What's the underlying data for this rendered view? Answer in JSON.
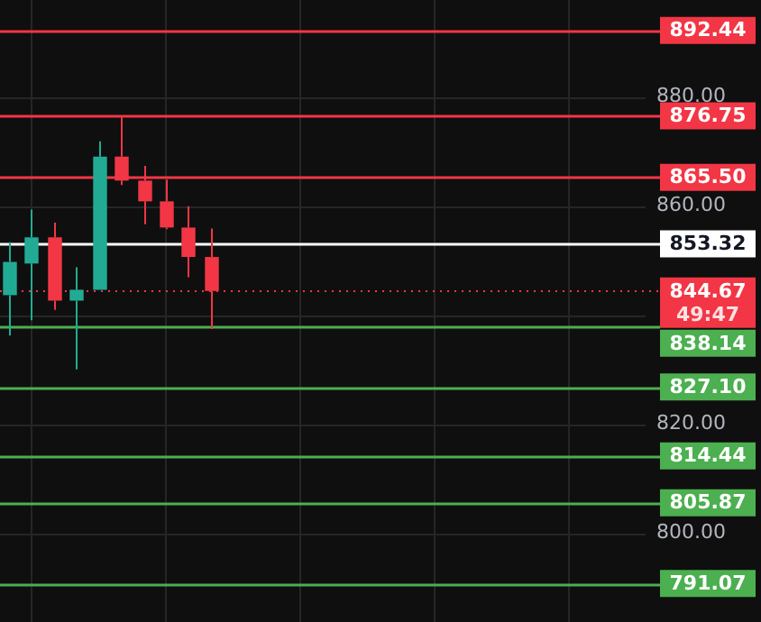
{
  "chart_data": {
    "type": "candlestick",
    "categories": [
      null,
      null,
      null,
      null,
      null,
      null,
      null,
      null,
      null,
      null,
      null,
      null,
      null,
      null,
      null,
      null,
      null,
      null,
      null,
      null,
      null,
      null,
      null,
      null,
      null,
      null,
      null,
      null,
      null
    ],
    "ohlc": [
      [
        843.9,
        853.6,
        836.5,
        850.0
      ],
      [
        849.7,
        859.6,
        839.3,
        854.5
      ],
      [
        854.5,
        857.2,
        841.2,
        842.9
      ],
      [
        842.9,
        849.0,
        830.3,
        844.9
      ],
      [
        844.9,
        872.1,
        844.9,
        869.3
      ],
      [
        869.3,
        876.5,
        864.1,
        864.9
      ],
      [
        864.9,
        867.6,
        856.9,
        861.1
      ],
      [
        861.1,
        865.1,
        856.0,
        856.3
      ],
      [
        856.3,
        860.2,
        847.2,
        850.9
      ],
      [
        850.9,
        856.1,
        837.7,
        844.67
      ],
      null,
      null,
      null,
      null,
      null,
      null,
      null,
      null,
      null,
      null,
      null,
      null,
      null,
      null,
      null,
      null,
      null,
      null,
      null
    ],
    "ylim": [
      784,
      898
    ],
    "yticks": [
      {
        "value": 800,
        "label": "800.00"
      },
      {
        "value": 820,
        "label": "820.00"
      },
      {
        "value": 840,
        "label": null
      },
      {
        "value": 860,
        "label": "860.00"
      },
      {
        "value": 880,
        "label": "880.00"
      }
    ],
    "ref_lines": [
      {
        "axis": "y",
        "value": 892.44,
        "label": "892.44",
        "color": "#f23645"
      },
      {
        "axis": "y",
        "value": 876.75,
        "label": "876.75",
        "color": "#f23645"
      },
      {
        "axis": "y",
        "value": 865.5,
        "label": "865.50",
        "color": "#f23645"
      },
      {
        "axis": "y",
        "value": 853.32,
        "label": "853.32",
        "color": "#ffffff"
      },
      {
        "axis": "y",
        "value": 844.67,
        "label": "844.67",
        "color": "#f23645",
        "line_style": "dotted"
      },
      {
        "axis": "y",
        "value": 838.14,
        "label": "838.14",
        "color": "#4caf50"
      },
      {
        "axis": "y",
        "value": 827.1,
        "label": "827.10",
        "color": "#4caf50"
      },
      {
        "axis": "y",
        "value": 814.44,
        "label": "814.44",
        "color": "#4caf50"
      },
      {
        "axis": "y",
        "value": 805.87,
        "label": "805.87",
        "color": "#4caf50"
      },
      {
        "axis": "y",
        "value": 791.07,
        "label": "791.07",
        "color": "#4caf50"
      }
    ],
    "annotations": [
      "49:47"
    ],
    "grid": true,
    "tick_labels": "y"
  }
}
